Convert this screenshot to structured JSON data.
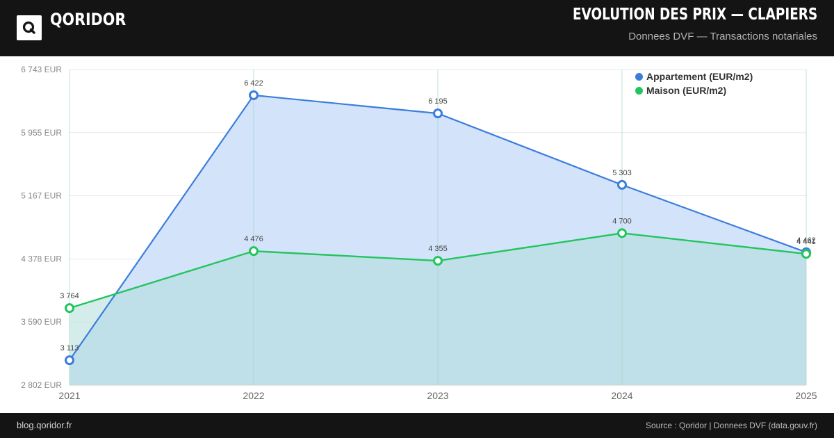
{
  "header": {
    "brand": "QORIDOR",
    "title": "EVOLUTION DES PRIX — CLAPIERS",
    "subtitle": "Donnees DVF — Transactions notariales"
  },
  "footer": {
    "left": "blog.qoridor.fr",
    "right": "Source : Qoridor | Donnees DVF (data.gouv.fr)"
  },
  "colors": {
    "appartement": "#3b7ddd",
    "maison": "#22c55e",
    "area_blue": "#d3e3fa",
    "area_green": "#b0dedb",
    "grid": "#e8e8e8",
    "header_bg": "#141414"
  },
  "chart_data": {
    "type": "area",
    "x": [
      "2021",
      "2022",
      "2023",
      "2024",
      "2025"
    ],
    "ylim": [
      2802,
      6743
    ],
    "yticks": [
      2802,
      3590,
      4378,
      5167,
      5955,
      6743
    ],
    "ytick_labels": [
      "2 802 EUR",
      "3 590 EUR",
      "4 378 EUR",
      "5 167 EUR",
      "5 955 EUR",
      "6 743 EUR"
    ],
    "grid": true,
    "legend_position": "top-right",
    "series": [
      {
        "name": "Appartement (EUR/m2)",
        "color": "#3b7ddd",
        "values": [
          3113,
          6422,
          6195,
          5303,
          4462
        ],
        "labels": [
          "3 113",
          "6 422",
          "6 195",
          "5 303",
          "4 462"
        ]
      },
      {
        "name": "Maison (EUR/m2)",
        "color": "#22c55e",
        "values": [
          3764,
          4476,
          4355,
          4700,
          4441
        ],
        "labels": [
          "3 764",
          "4 476",
          "4 355",
          "4 700",
          "4 441"
        ]
      }
    ]
  }
}
